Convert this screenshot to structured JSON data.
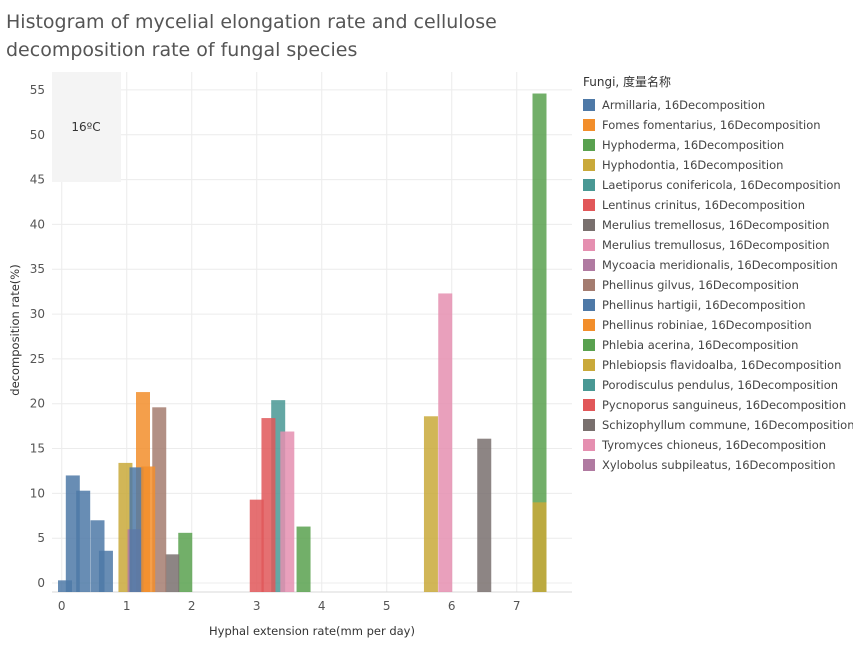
{
  "chart_data": {
    "type": "bar",
    "title": "Histogram of mycelial elongation rate and cellulose decomposition rate of fungal species",
    "xlabel": "Hyphal extension rate(mm per day)",
    "ylabel": "decomposition rate(%)",
    "xlim": [
      -0.15,
      7.85
    ],
    "ylim": [
      -1,
      57
    ],
    "xticks": [
      "0",
      "1",
      "2",
      "3",
      "4",
      "5",
      "6",
      "7"
    ],
    "yticks": [
      "0",
      "5",
      "10",
      "15",
      "20",
      "25",
      "30",
      "35",
      "40",
      "45",
      "50",
      "55"
    ],
    "grid": true,
    "annotation": "16ºC",
    "legend_title": "Fungi, 度量名称",
    "legend_position": "right",
    "series": [
      {
        "name": "Armillaria, 16Decomposition",
        "color": "#4e79a7",
        "points": [
          [
            0.05,
            0.3
          ],
          [
            0.17,
            12
          ],
          [
            0.33,
            10.3
          ],
          [
            0.55,
            7
          ],
          [
            0.68,
            3.6
          ]
        ]
      },
      {
        "name": "Fomes fomentarius, 16Decomposition",
        "color": "#f28e2b",
        "points": [
          [
            1.25,
            21.3
          ]
        ]
      },
      {
        "name": "Hyphoderma, 16Decomposition",
        "color": "#59a14f",
        "points": [
          [
            1.9,
            5.6
          ]
        ]
      },
      {
        "name": "Hyphodontia, 16Decomposition",
        "color": "#c9a93a",
        "points": [
          [
            0.98,
            13.4
          ]
        ]
      },
      {
        "name": "Laetiporus conifericola, 16Decomposition",
        "color": "#499894",
        "points": [
          [
            3.33,
            20.4
          ]
        ]
      },
      {
        "name": "Lentinus crinitus, 16Decomposition",
        "color": "#e15759",
        "points": [
          [
            3.18,
            18.4
          ],
          [
            3.0,
            9.3
          ]
        ]
      },
      {
        "name": "Merulius tremellosus, 16Decomposition",
        "color": "#79706e",
        "points": [
          [
            1.7,
            3.2
          ]
        ]
      },
      {
        "name": "Merulius tremullosus, 16Decomposition",
        "color": "#e58fb0",
        "points": [
          [
            3.47,
            16.9
          ]
        ]
      },
      {
        "name": "Mycoacia meridionalis, 16Decomposition",
        "color": "#b07aa1",
        "points": [
          [
            1.12,
            6
          ]
        ]
      },
      {
        "name": "Phellinus gilvus, 16Decomposition",
        "color": "#a47c70",
        "points": [
          [
            1.5,
            19.6
          ]
        ]
      },
      {
        "name": "Phellinus hartigii, 16Decomposition",
        "color": "#4e79a7",
        "points": [
          [
            1.15,
            12.9
          ]
        ]
      },
      {
        "name": "Phellinus robiniae, 16Decomposition",
        "color": "#f28e2b",
        "points": [
          [
            1.33,
            13
          ]
        ]
      },
      {
        "name": "Phlebia acerina, 16Decomposition",
        "color": "#59a14f",
        "points": [
          [
            3.72,
            6.3
          ],
          [
            7.35,
            54.6
          ]
        ]
      },
      {
        "name": "Phlebiopsis flavidoalba, 16Decomposition",
        "color": "#c9a93a",
        "points": [
          [
            5.68,
            18.6
          ],
          [
            7.35,
            9
          ]
        ]
      },
      {
        "name": "Porodisculus pendulus, 16Decomposition",
        "color": "#499894",
        "points": []
      },
      {
        "name": "Pycnoporus sanguineus, 16Decomposition",
        "color": "#e15759",
        "points": []
      },
      {
        "name": "Schizophyllum commune, 16Decomposition",
        "color": "#79706e",
        "points": [
          [
            6.5,
            16.1
          ]
        ]
      },
      {
        "name": "Tyromyces chioneus, 16Decomposition",
        "color": "#e58fb0",
        "points": [
          [
            5.9,
            32.3
          ]
        ]
      },
      {
        "name": "Xylobolus subpileatus, 16Decomposition",
        "color": "#b07aa1",
        "points": []
      }
    ]
  }
}
